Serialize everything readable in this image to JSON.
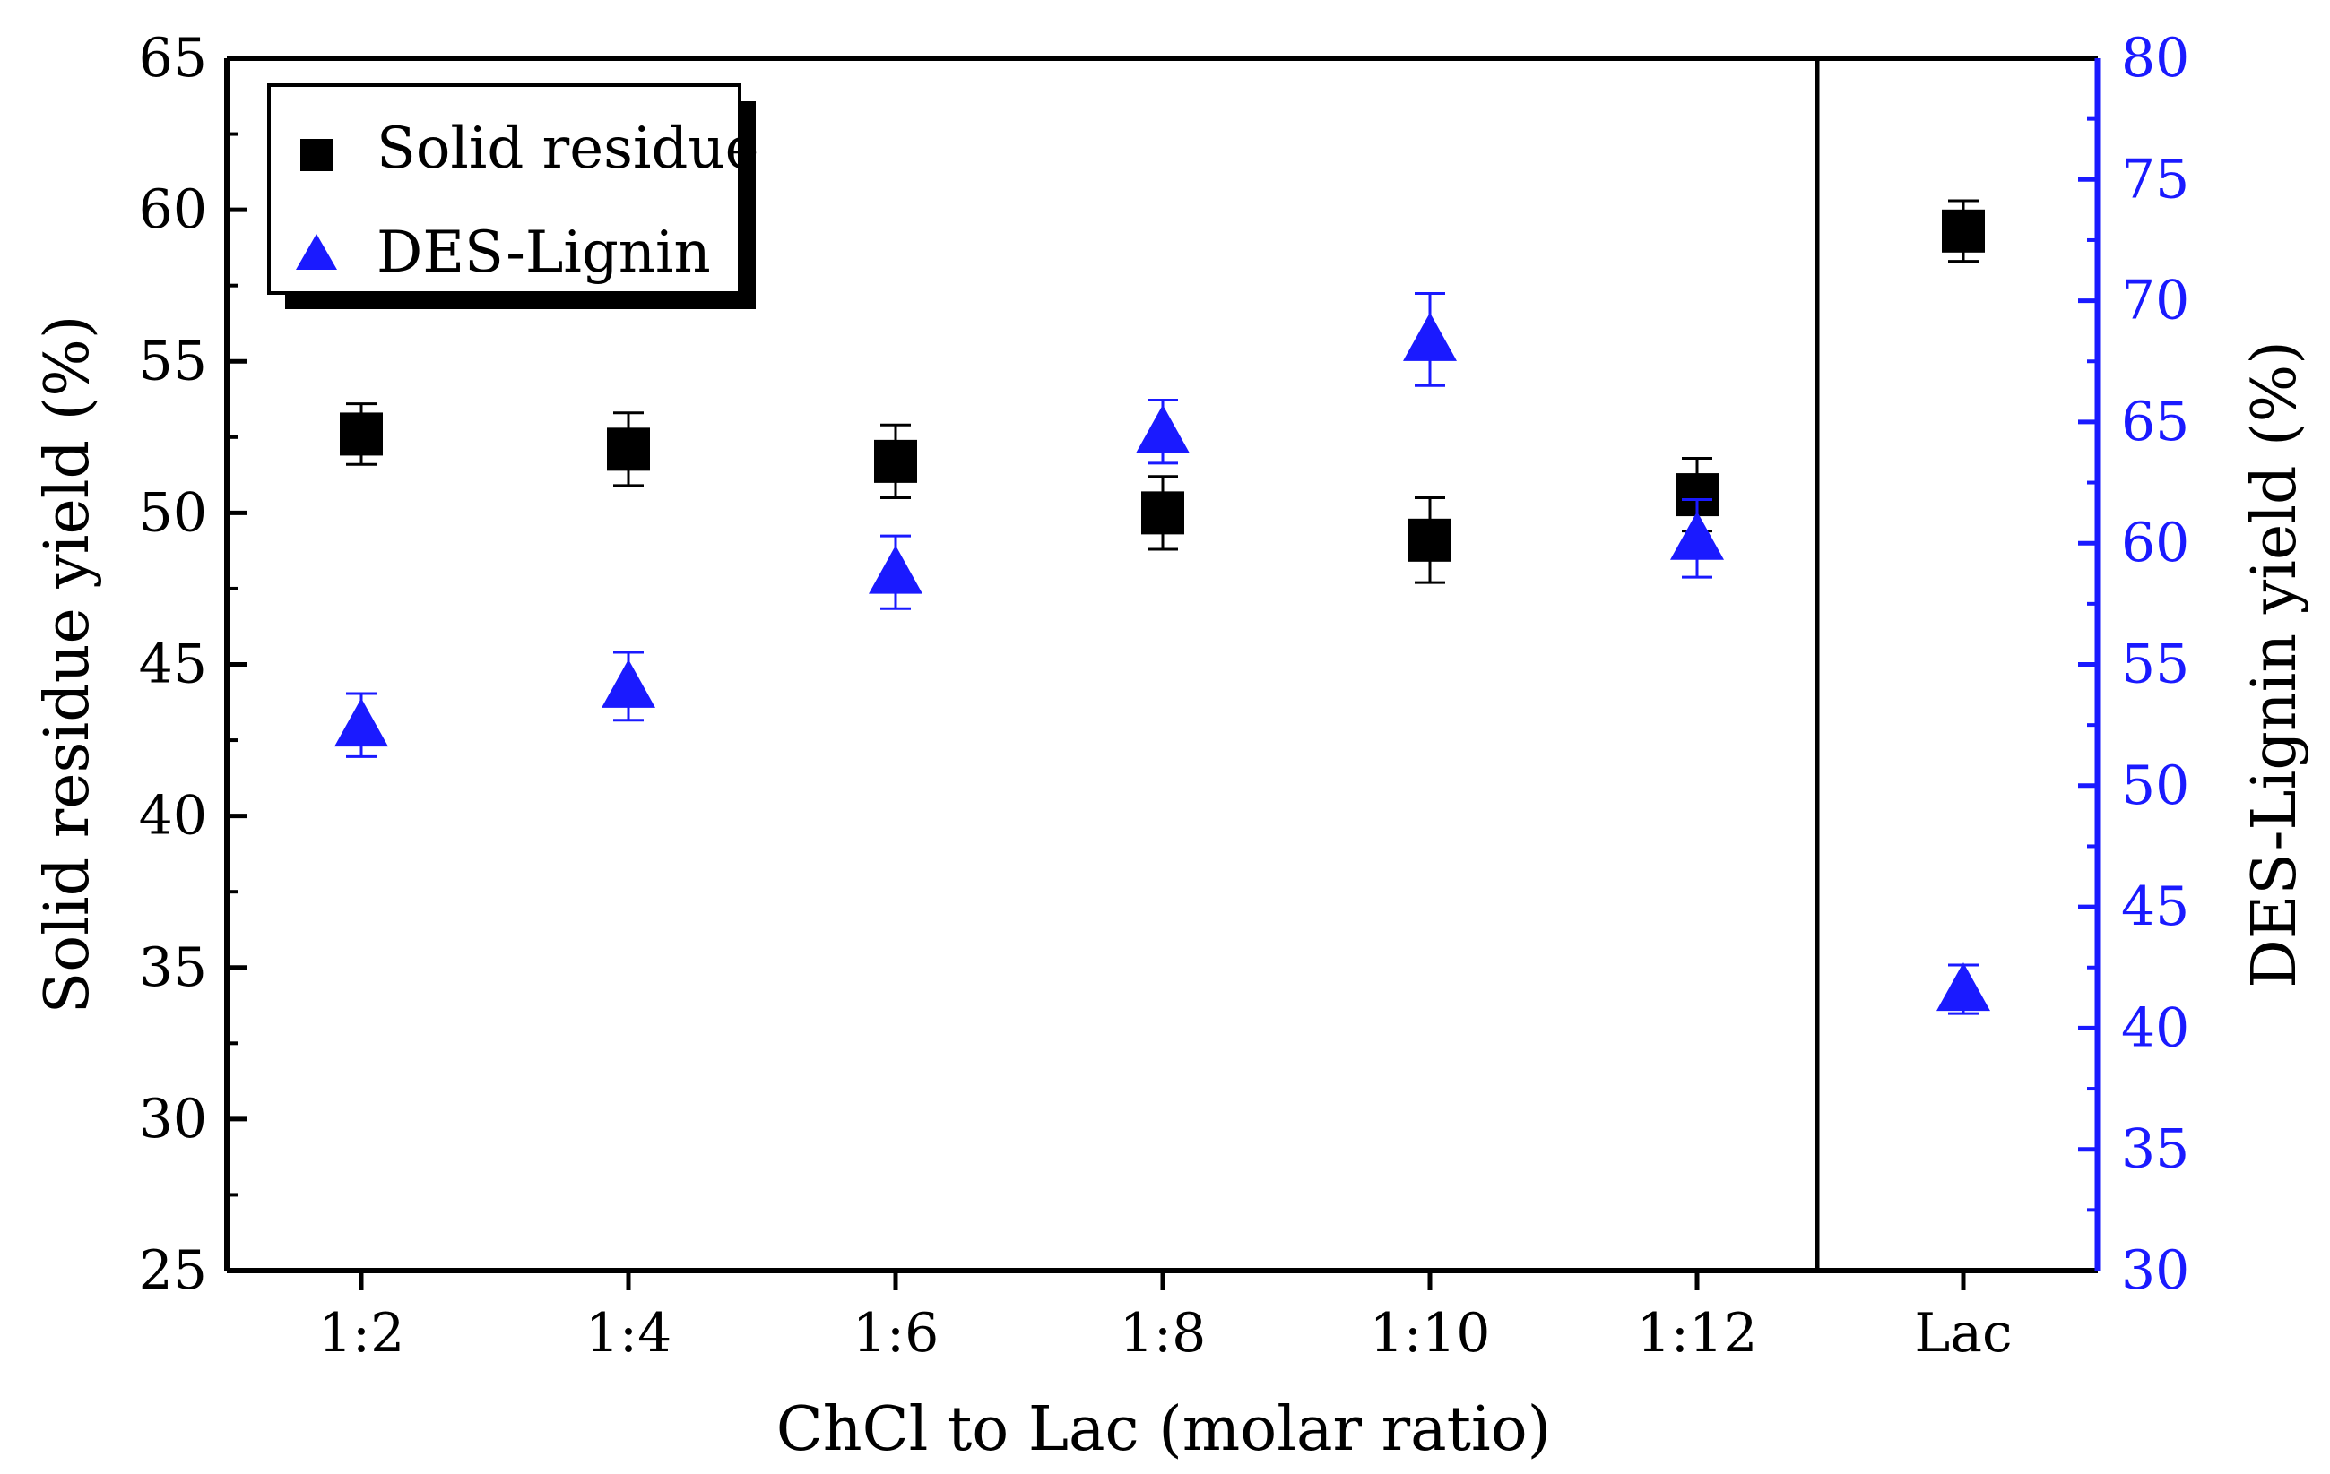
{
  "chart_data": {
    "type": "scatter",
    "title": "",
    "xlabel": "ChCl to Lac (molar ratio)",
    "ylabel_left": "Solid residue yield (%)",
    "ylabel_right": "DES-Lignin yield (%)",
    "categories": [
      "1:2",
      "1:4",
      "1:6",
      "1:8",
      "1:10",
      "1:12",
      "Lac"
    ],
    "ylim_left": [
      25,
      65
    ],
    "ylim_right": [
      30,
      80
    ],
    "yticks_left": [
      25,
      30,
      35,
      40,
      45,
      50,
      55,
      60,
      65
    ],
    "yticks_right": [
      30,
      35,
      40,
      45,
      50,
      55,
      60,
      65,
      70,
      75,
      80
    ],
    "separator_after_category": "1:12",
    "legend_position": "top-left",
    "series": [
      {
        "name": "Solid residue",
        "axis": "left",
        "marker": "square",
        "color": "#000000",
        "values": [
          52.6,
          52.1,
          51.7,
          50.0,
          49.1,
          50.6,
          59.3
        ],
        "errors": [
          1.0,
          1.2,
          1.2,
          1.2,
          1.4,
          1.2,
          1.0
        ]
      },
      {
        "name": "DES-Lignin",
        "axis": "right",
        "marker": "triangle",
        "color": "#1a1aff",
        "values": [
          52.5,
          54.1,
          58.8,
          64.6,
          68.4,
          60.2,
          41.6
        ],
        "errors": [
          1.3,
          1.4,
          1.5,
          1.3,
          1.9,
          1.6,
          1.0
        ]
      }
    ]
  }
}
